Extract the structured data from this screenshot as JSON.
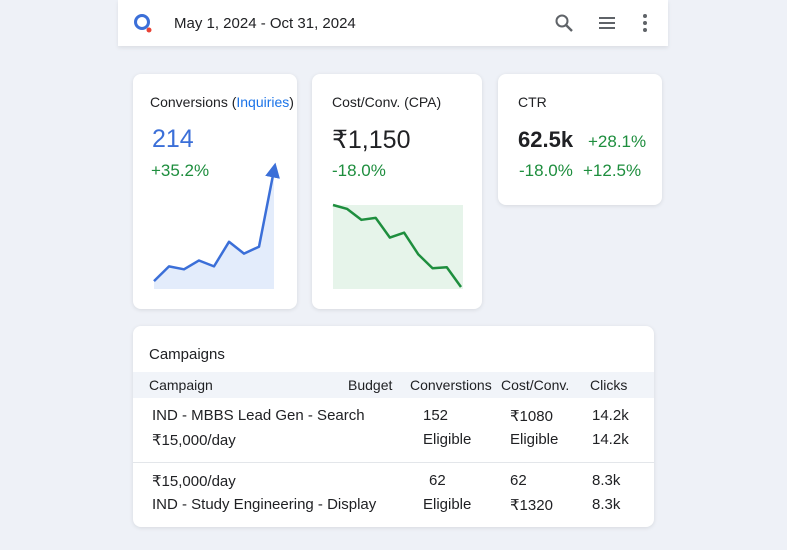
{
  "header": {
    "date_range": "May 1, 2024 - Oct 31, 2024"
  },
  "cards": [
    {
      "title_prefix": "Conversions (",
      "title_link": "Inquiries",
      "title_suffix": ")",
      "value": "214",
      "change": "+35.2%",
      "trend": [
        8,
        23,
        20,
        29,
        23,
        48,
        36,
        43,
        121
      ]
    },
    {
      "title": "Cost/Conv. (CPA)",
      "value": "₹1,150",
      "change": "-18.0%",
      "trend": [
        84,
        80,
        69,
        71,
        51,
        56,
        34,
        20,
        21,
        1
      ]
    },
    {
      "title": "CTR",
      "value": "62.5k",
      "change": "+28.1%",
      "change2": "-18.0%",
      "change3": "+12.5%"
    }
  ],
  "table": {
    "title": "Campaigns",
    "columns": [
      "Campaign",
      "Budget",
      "Converstions",
      "Cost/Conv.",
      "Clicks"
    ],
    "rows": [
      [
        {
          "campaign": "IND - MBBS Lead Gen - Search",
          "conversions": "152",
          "cost": "₹1080",
          "clicks": "14.2k"
        },
        {
          "campaign": "₹15,000/day",
          "conversions": "Eligible",
          "cost": "Eligible",
          "clicks": "14.2k"
        }
      ],
      [
        {
          "campaign": "₹15,000/day",
          "conversions": "62",
          "cost": "62",
          "clicks": "8.3k"
        },
        {
          "campaign": "IND - Study Engineering - Display",
          "conversions": "Eligible",
          "cost": "₹1320",
          "clicks": "8.3k"
        }
      ]
    ]
  }
}
